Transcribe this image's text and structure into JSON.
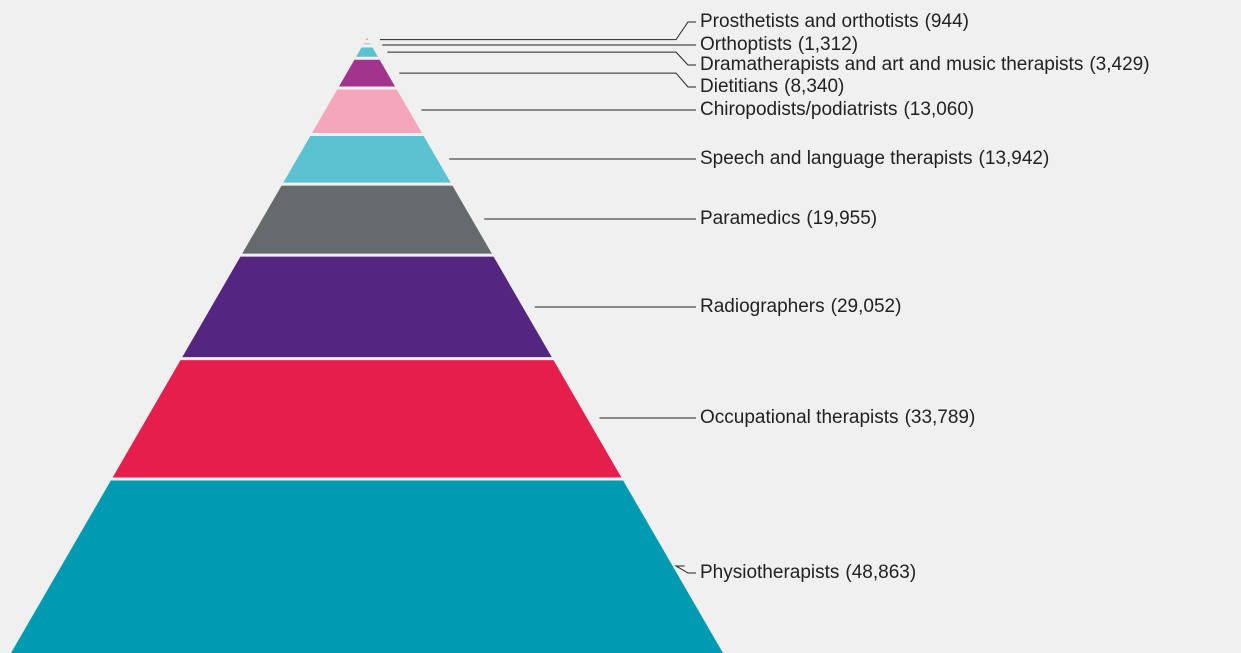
{
  "chart_data": {
    "type": "pyramid",
    "categories": [
      "Prosthetists and orthotists",
      "Orthoptists",
      "Dramatherapists and art and music therapists",
      "Dietitians",
      "Chiropodists/podiatrists",
      "Speech and language therapists",
      "Paramedics",
      "Radiographers",
      "Occupational therapists",
      "Physiotherapists"
    ],
    "values": [
      944,
      1312,
      3429,
      8340,
      13060,
      13942,
      19955,
      29052,
      33789,
      48863
    ],
    "value_labels": [
      "(944)",
      "(1,312)",
      "(3,429)",
      "(8,340)",
      "(13,060)",
      "(13,942)",
      "(19,955)",
      "(29,052)",
      "(33,789)",
      "(48,863)"
    ],
    "colors": [
      "#e8808f",
      "#c9ccce",
      "#5bc2d2",
      "#a3348d",
      "#f4a7bb",
      "#5bc2d2",
      "#656a6c",
      "#55267f",
      "#e61e4b",
      "#009bb0"
    ]
  }
}
